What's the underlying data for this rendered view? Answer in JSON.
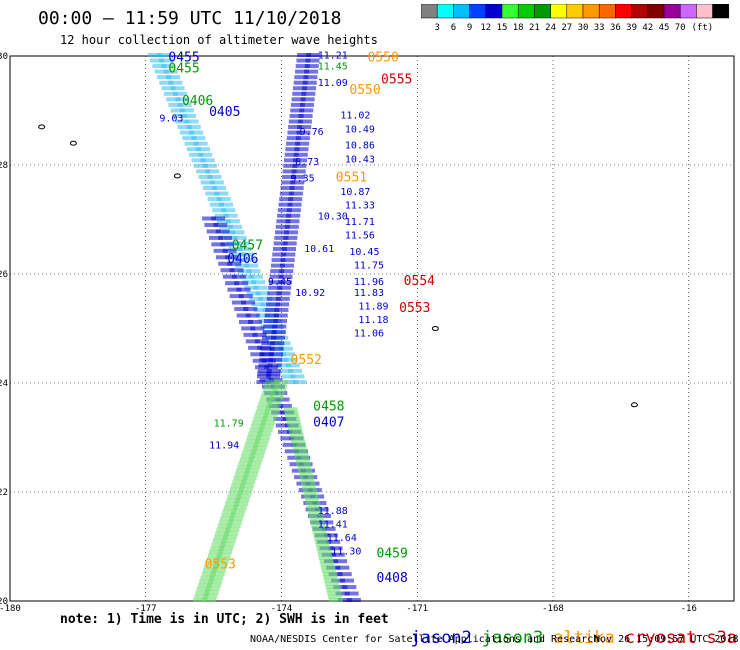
{
  "title": "00:00 – 11:59 UTC 11/10/2018",
  "subtitle": "12 hour collection of altimeter wave heights",
  "colorbar": {
    "colors": [
      "#808080",
      "#00ffff",
      "#00bfff",
      "#0040ff",
      "#0000cd",
      "#33ff33",
      "#00cc00",
      "#009900",
      "#ffff00",
      "#ffcc00",
      "#ff9900",
      "#ff6600",
      "#ff0000",
      "#b30000",
      "#800000",
      "#990099",
      "#cc66ff",
      "#ffc0cb",
      "#000000"
    ],
    "labels": [
      "3",
      "6",
      "9",
      "12",
      "15",
      "18",
      "21",
      "24",
      "27",
      "30",
      "33",
      "36",
      "39",
      "42",
      "45",
      "70",
      "(ft)"
    ]
  },
  "axes": {
    "lat_ticks": [
      "30",
      "28",
      "26",
      "24",
      "22",
      "20"
    ],
    "lon_ticks": [
      "-180",
      "-177",
      "-174",
      "-171",
      "-168",
      "-16"
    ]
  },
  "chart_data": {
    "type": "scatter",
    "xlabel": "",
    "ylabel": "",
    "xlim": [
      -180,
      -164
    ],
    "ylim": [
      20,
      30
    ],
    "series": [
      {
        "name": "jason2",
        "color": "#0000cd"
      },
      {
        "name": "jason3",
        "color": "#009900"
      },
      {
        "name": "altika",
        "color": "#ff9900"
      },
      {
        "name": "cryosat",
        "color": "#cc0000"
      },
      {
        "name": "s3a",
        "color": "#cc0000"
      }
    ],
    "labels": [
      {
        "text": "0455",
        "x": -176.5,
        "y": 29.9,
        "color": "#0000cd",
        "size": 13
      },
      {
        "text": "0455",
        "x": -176.5,
        "y": 29.7,
        "color": "#009900",
        "size": 13
      },
      {
        "text": "0406",
        "x": -176.2,
        "y": 29.1,
        "color": "#009900",
        "size": 13
      },
      {
        "text": "0405",
        "x": -175.6,
        "y": 28.9,
        "color": "#0000cd",
        "size": 13
      },
      {
        "text": "0457",
        "x": -175.1,
        "y": 26.45,
        "color": "#009900",
        "size": 13
      },
      {
        "text": "0406",
        "x": -175.2,
        "y": 26.2,
        "color": "#0000cd",
        "size": 13
      },
      {
        "text": "0550",
        "x": -172.1,
        "y": 29.9,
        "color": "#ff9900",
        "size": 13
      },
      {
        "text": "0555",
        "x": -171.8,
        "y": 29.5,
        "color": "#cc0000",
        "size": 13
      },
      {
        "text": "0550",
        "x": -172.5,
        "y": 29.3,
        "color": "#ff9900",
        "size": 13
      },
      {
        "text": "0551",
        "x": -172.8,
        "y": 27.7,
        "color": "#ff9900",
        "size": 13
      },
      {
        "text": "0554",
        "x": -171.3,
        "y": 25.8,
        "color": "#cc0000",
        "size": 13
      },
      {
        "text": "0553",
        "x": -171.4,
        "y": 25.3,
        "color": "#cc0000",
        "size": 13
      },
      {
        "text": "0552",
        "x": -173.8,
        "y": 24.35,
        "color": "#ff9900",
        "size": 13
      },
      {
        "text": "0458",
        "x": -173.3,
        "y": 23.5,
        "color": "#009900",
        "size": 13
      },
      {
        "text": "0407",
        "x": -173.3,
        "y": 23.2,
        "color": "#0000cd",
        "size": 13
      },
      {
        "text": "0553",
        "x": -175.7,
        "y": 20.6,
        "color": "#ff9900",
        "size": 13
      },
      {
        "text": "0459",
        "x": -171.9,
        "y": 20.8,
        "color": "#009900",
        "size": 13
      },
      {
        "text": "0408",
        "x": -171.9,
        "y": 20.35,
        "color": "#0000cd",
        "size": 13
      },
      {
        "text": "11.21",
        "x": -173.2,
        "y": 29.95,
        "color": "#0000cd",
        "size": 10
      },
      {
        "text": "11.45",
        "x": -173.2,
        "y": 29.75,
        "color": "#009900",
        "size": 10
      },
      {
        "text": "11.09",
        "x": -173.2,
        "y": 29.45,
        "color": "#0000cd",
        "size": 10
      },
      {
        "text": "11.02",
        "x": -172.7,
        "y": 28.85,
        "color": "#0000cd",
        "size": 10
      },
      {
        "text": "10.49",
        "x": -172.6,
        "y": 28.6,
        "color": "#0000cd",
        "size": 10
      },
      {
        "text": "10.86",
        "x": -172.6,
        "y": 28.3,
        "color": "#0000cd",
        "size": 10
      },
      {
        "text": "10.43",
        "x": -172.6,
        "y": 28.05,
        "color": "#0000cd",
        "size": 10
      },
      {
        "text": "10.87",
        "x": -172.7,
        "y": 27.45,
        "color": "#0000cd",
        "size": 10
      },
      {
        "text": "11.33",
        "x": -172.6,
        "y": 27.2,
        "color": "#0000cd",
        "size": 10
      },
      {
        "text": "11.71",
        "x": -172.6,
        "y": 26.9,
        "color": "#0000cd",
        "size": 10
      },
      {
        "text": "11.56",
        "x": -172.6,
        "y": 26.65,
        "color": "#0000cd",
        "size": 10
      },
      {
        "text": "10.45",
        "x": -172.5,
        "y": 26.35,
        "color": "#0000cd",
        "size": 10
      },
      {
        "text": "11.75",
        "x": -172.4,
        "y": 26.1,
        "color": "#0000cd",
        "size": 10
      },
      {
        "text": "11.96",
        "x": -172.4,
        "y": 25.8,
        "color": "#0000cd",
        "size": 10
      },
      {
        "text": "11.83",
        "x": -172.4,
        "y": 25.6,
        "color": "#0000cd",
        "size": 10
      },
      {
        "text": "11.89",
        "x": -172.3,
        "y": 25.35,
        "color": "#0000cd",
        "size": 10
      },
      {
        "text": "11.18",
        "x": -172.3,
        "y": 25.1,
        "color": "#0000cd",
        "size": 10
      },
      {
        "text": "11.06",
        "x": -172.4,
        "y": 24.85,
        "color": "#0000cd",
        "size": 10
      },
      {
        "text": "10.30",
        "x": -173.2,
        "y": 27.0,
        "color": "#0000cd",
        "size": 10
      },
      {
        "text": "10.61",
        "x": -173.5,
        "y": 26.4,
        "color": "#0000cd",
        "size": 10
      },
      {
        "text": "10.92",
        "x": -173.7,
        "y": 25.6,
        "color": "#0000cd",
        "size": 10
      },
      {
        "text": "11.94",
        "x": -175.6,
        "y": 22.8,
        "color": "#0000cd",
        "size": 10
      },
      {
        "text": "11.79",
        "x": -175.5,
        "y": 23.2,
        "color": "#009900",
        "size": 10
      },
      {
        "text": "11.64",
        "x": -173.0,
        "y": 21.1,
        "color": "#0000cd",
        "size": 10
      },
      {
        "text": "11.30",
        "x": -172.9,
        "y": 20.85,
        "color": "#0000cd",
        "size": 10
      },
      {
        "text": "11.88",
        "x": -173.2,
        "y": 21.6,
        "color": "#0000cd",
        "size": 10
      },
      {
        "text": "11.41",
        "x": -173.2,
        "y": 21.35,
        "color": "#0000cd",
        "size": 10
      },
      {
        "text": "9.03",
        "x": -176.7,
        "y": 28.8,
        "color": "#0000cd",
        "size": 10
      },
      {
        "text": "9.35",
        "x": -173.8,
        "y": 27.7,
        "color": "#0000cd",
        "size": 10
      },
      {
        "text": "9.45",
        "x": -174.3,
        "y": 25.8,
        "color": "#0000cd",
        "size": 10
      },
      {
        "text": "8.73",
        "x": -173.7,
        "y": 28.0,
        "color": "#0000cd",
        "size": 10
      },
      {
        "text": "9.76",
        "x": -173.6,
        "y": 28.55,
        "color": "#0000cd",
        "size": 10
      }
    ]
  },
  "note": "note: 1) Time is in UTC; 2) SWH is in feet",
  "sat_legend": {
    "jason2": "jason2",
    "jason3": "jason3",
    "altika": "altika",
    "cryosat": "cryosat",
    "s3a": "s3a"
  },
  "credit": "NOAA/NESDIS Center for Satellite Applications and Research",
  "timestamp": "Nov 26 15:09:57 UTC 2018"
}
